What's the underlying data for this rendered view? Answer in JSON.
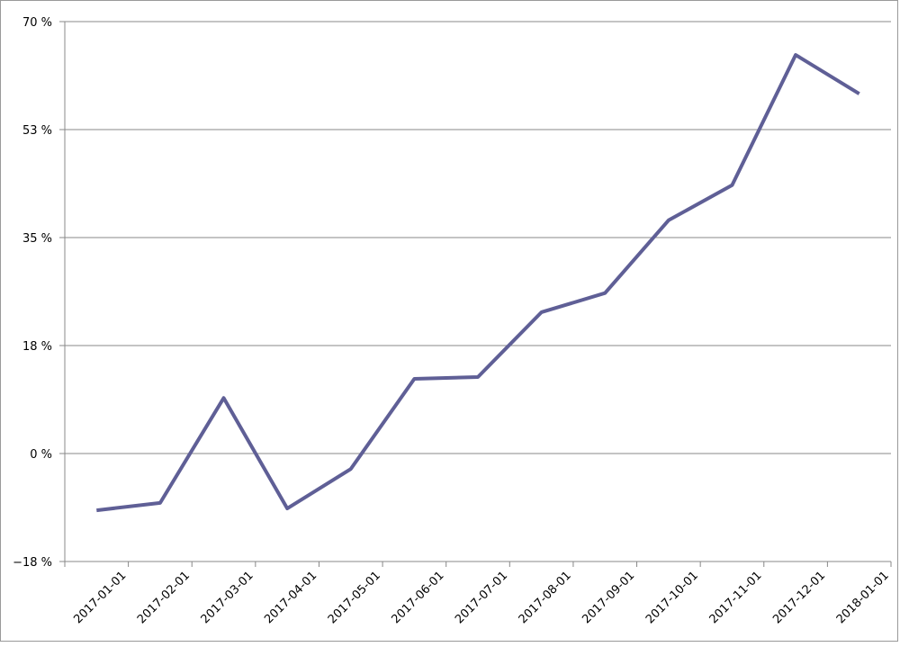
{
  "chart_data": {
    "type": "line",
    "categories": [
      "2017-01-01",
      "2017-02-01",
      "2017-03-01",
      "2017-04-01",
      "2017-05-01",
      "2017-06-01",
      "2017-07-01",
      "2017-08-01",
      "2017-09-01",
      "2017-10-01",
      "2017-11-01",
      "2017-12-01",
      "2018-01-01"
    ],
    "series": [
      {
        "color": "#5f5f96",
        "values": [
          -9.2,
          -8.0,
          9.0,
          -8.9,
          -2.5,
          12.1,
          12.4,
          22.9,
          26.0,
          37.8,
          43.5,
          64.6,
          58.3
        ]
      }
    ],
    "ylim": [
      -17.5,
      70
    ],
    "yticks": [
      {
        "value": -17.5,
        "label": "−18 %"
      },
      {
        "value": 0,
        "label": "0 %"
      },
      {
        "value": 17.5,
        "label": "18 %"
      },
      {
        "value": 35,
        "label": "35 %"
      },
      {
        "value": 52.5,
        "label": "53 %"
      },
      {
        "value": 70,
        "label": "70 %"
      }
    ],
    "grid": true
  }
}
